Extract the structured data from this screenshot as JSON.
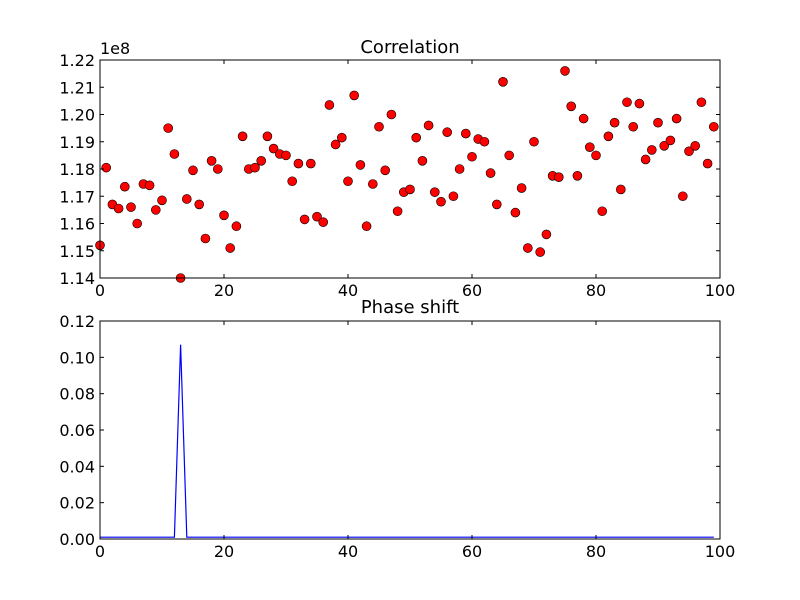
{
  "chart_data": [
    {
      "type": "scatter",
      "title": "Correlation",
      "xlabel": "",
      "ylabel": "",
      "y_offset_label": "1e8",
      "xlim": [
        0,
        100
      ],
      "ylim": [
        1.14,
        1.22
      ],
      "xticks": [
        0,
        20,
        40,
        60,
        80,
        100
      ],
      "yticks": [
        1.14,
        1.15,
        1.16,
        1.17,
        1.18,
        1.19,
        1.2,
        1.21,
        1.22
      ],
      "ytick_labels": [
        "1.14",
        "1.15",
        "1.16",
        "1.17",
        "1.18",
        "1.19",
        "1.20",
        "1.21",
        "1.22"
      ],
      "grid": false,
      "marker_color": "#ff0000",
      "series": [
        {
          "x": [
            0,
            1,
            2,
            3,
            4,
            5,
            6,
            7,
            8,
            9,
            10,
            11,
            12,
            13,
            14,
            15,
            16,
            17,
            18,
            19,
            20,
            21,
            22,
            23,
            24,
            25,
            26,
            27,
            28,
            29,
            30,
            31,
            32,
            33,
            34,
            35,
            36,
            37,
            38,
            39,
            40,
            41,
            42,
            43,
            44,
            45,
            46,
            47,
            48,
            49,
            50,
            51,
            52,
            53,
            54,
            55,
            56,
            57,
            58,
            59,
            60,
            61,
            62,
            63,
            64,
            65,
            66,
            67,
            68,
            69,
            70,
            71,
            72,
            73,
            74,
            75,
            76,
            77,
            78,
            79,
            80,
            81,
            82,
            83,
            84,
            85,
            86,
            87,
            88,
            89,
            90,
            91,
            92,
            93,
            94,
            95,
            96,
            97,
            98,
            99
          ],
          "y": [
            1.152,
            1.1805,
            1.167,
            1.1655,
            1.1735,
            1.166,
            1.16,
            1.1745,
            1.174,
            1.165,
            1.1685,
            1.195,
            1.1855,
            1.14,
            1.169,
            1.1795,
            1.167,
            1.1545,
            1.183,
            1.18,
            1.163,
            1.151,
            1.159,
            1.192,
            1.18,
            1.1805,
            1.183,
            1.192,
            1.1875,
            1.1855,
            1.185,
            1.1755,
            1.182,
            1.1615,
            1.182,
            1.1625,
            1.1605,
            1.2035,
            1.189,
            1.1915,
            1.1755,
            1.207,
            1.1815,
            1.159,
            1.1745,
            1.1955,
            1.1795,
            1.2,
            1.1645,
            1.1715,
            1.1725,
            1.1915,
            1.183,
            1.196,
            1.1715,
            1.168,
            1.1935,
            1.17,
            1.18,
            1.193,
            1.1845,
            1.191,
            1.19,
            1.1785,
            1.167,
            1.212,
            1.185,
            1.164,
            1.173,
            1.151,
            1.19,
            1.1495,
            1.156,
            1.1775,
            1.177,
            1.216,
            1.203,
            1.1775,
            1.1985,
            1.188,
            1.185,
            1.1645,
            1.192,
            1.197,
            1.1725,
            1.2045,
            1.1955,
            1.204,
            1.1835,
            1.187,
            1.197,
            1.1885,
            1.1905,
            1.1985,
            1.17,
            1.1865,
            1.1885,
            1.2045,
            1.182,
            1.1955
          ]
        }
      ]
    },
    {
      "type": "line",
      "title": "Phase shift",
      "xlabel": "",
      "ylabel": "",
      "xlim": [
        0,
        100
      ],
      "ylim": [
        0,
        0.12
      ],
      "xticks": [
        0,
        20,
        40,
        60,
        80,
        100
      ],
      "yticks": [
        0,
        0.02,
        0.04,
        0.06,
        0.08,
        0.1,
        0.12
      ],
      "ytick_labels": [
        "0.00",
        "0.02",
        "0.04",
        "0.06",
        "0.08",
        "0.10",
        "0.12"
      ],
      "grid": false,
      "line_color": "#0000ff",
      "series": [
        {
          "x": [
            0,
            12,
            13,
            14,
            99
          ],
          "y": [
            0.001,
            0.001,
            0.107,
            0.001,
            0.001
          ]
        }
      ]
    }
  ]
}
